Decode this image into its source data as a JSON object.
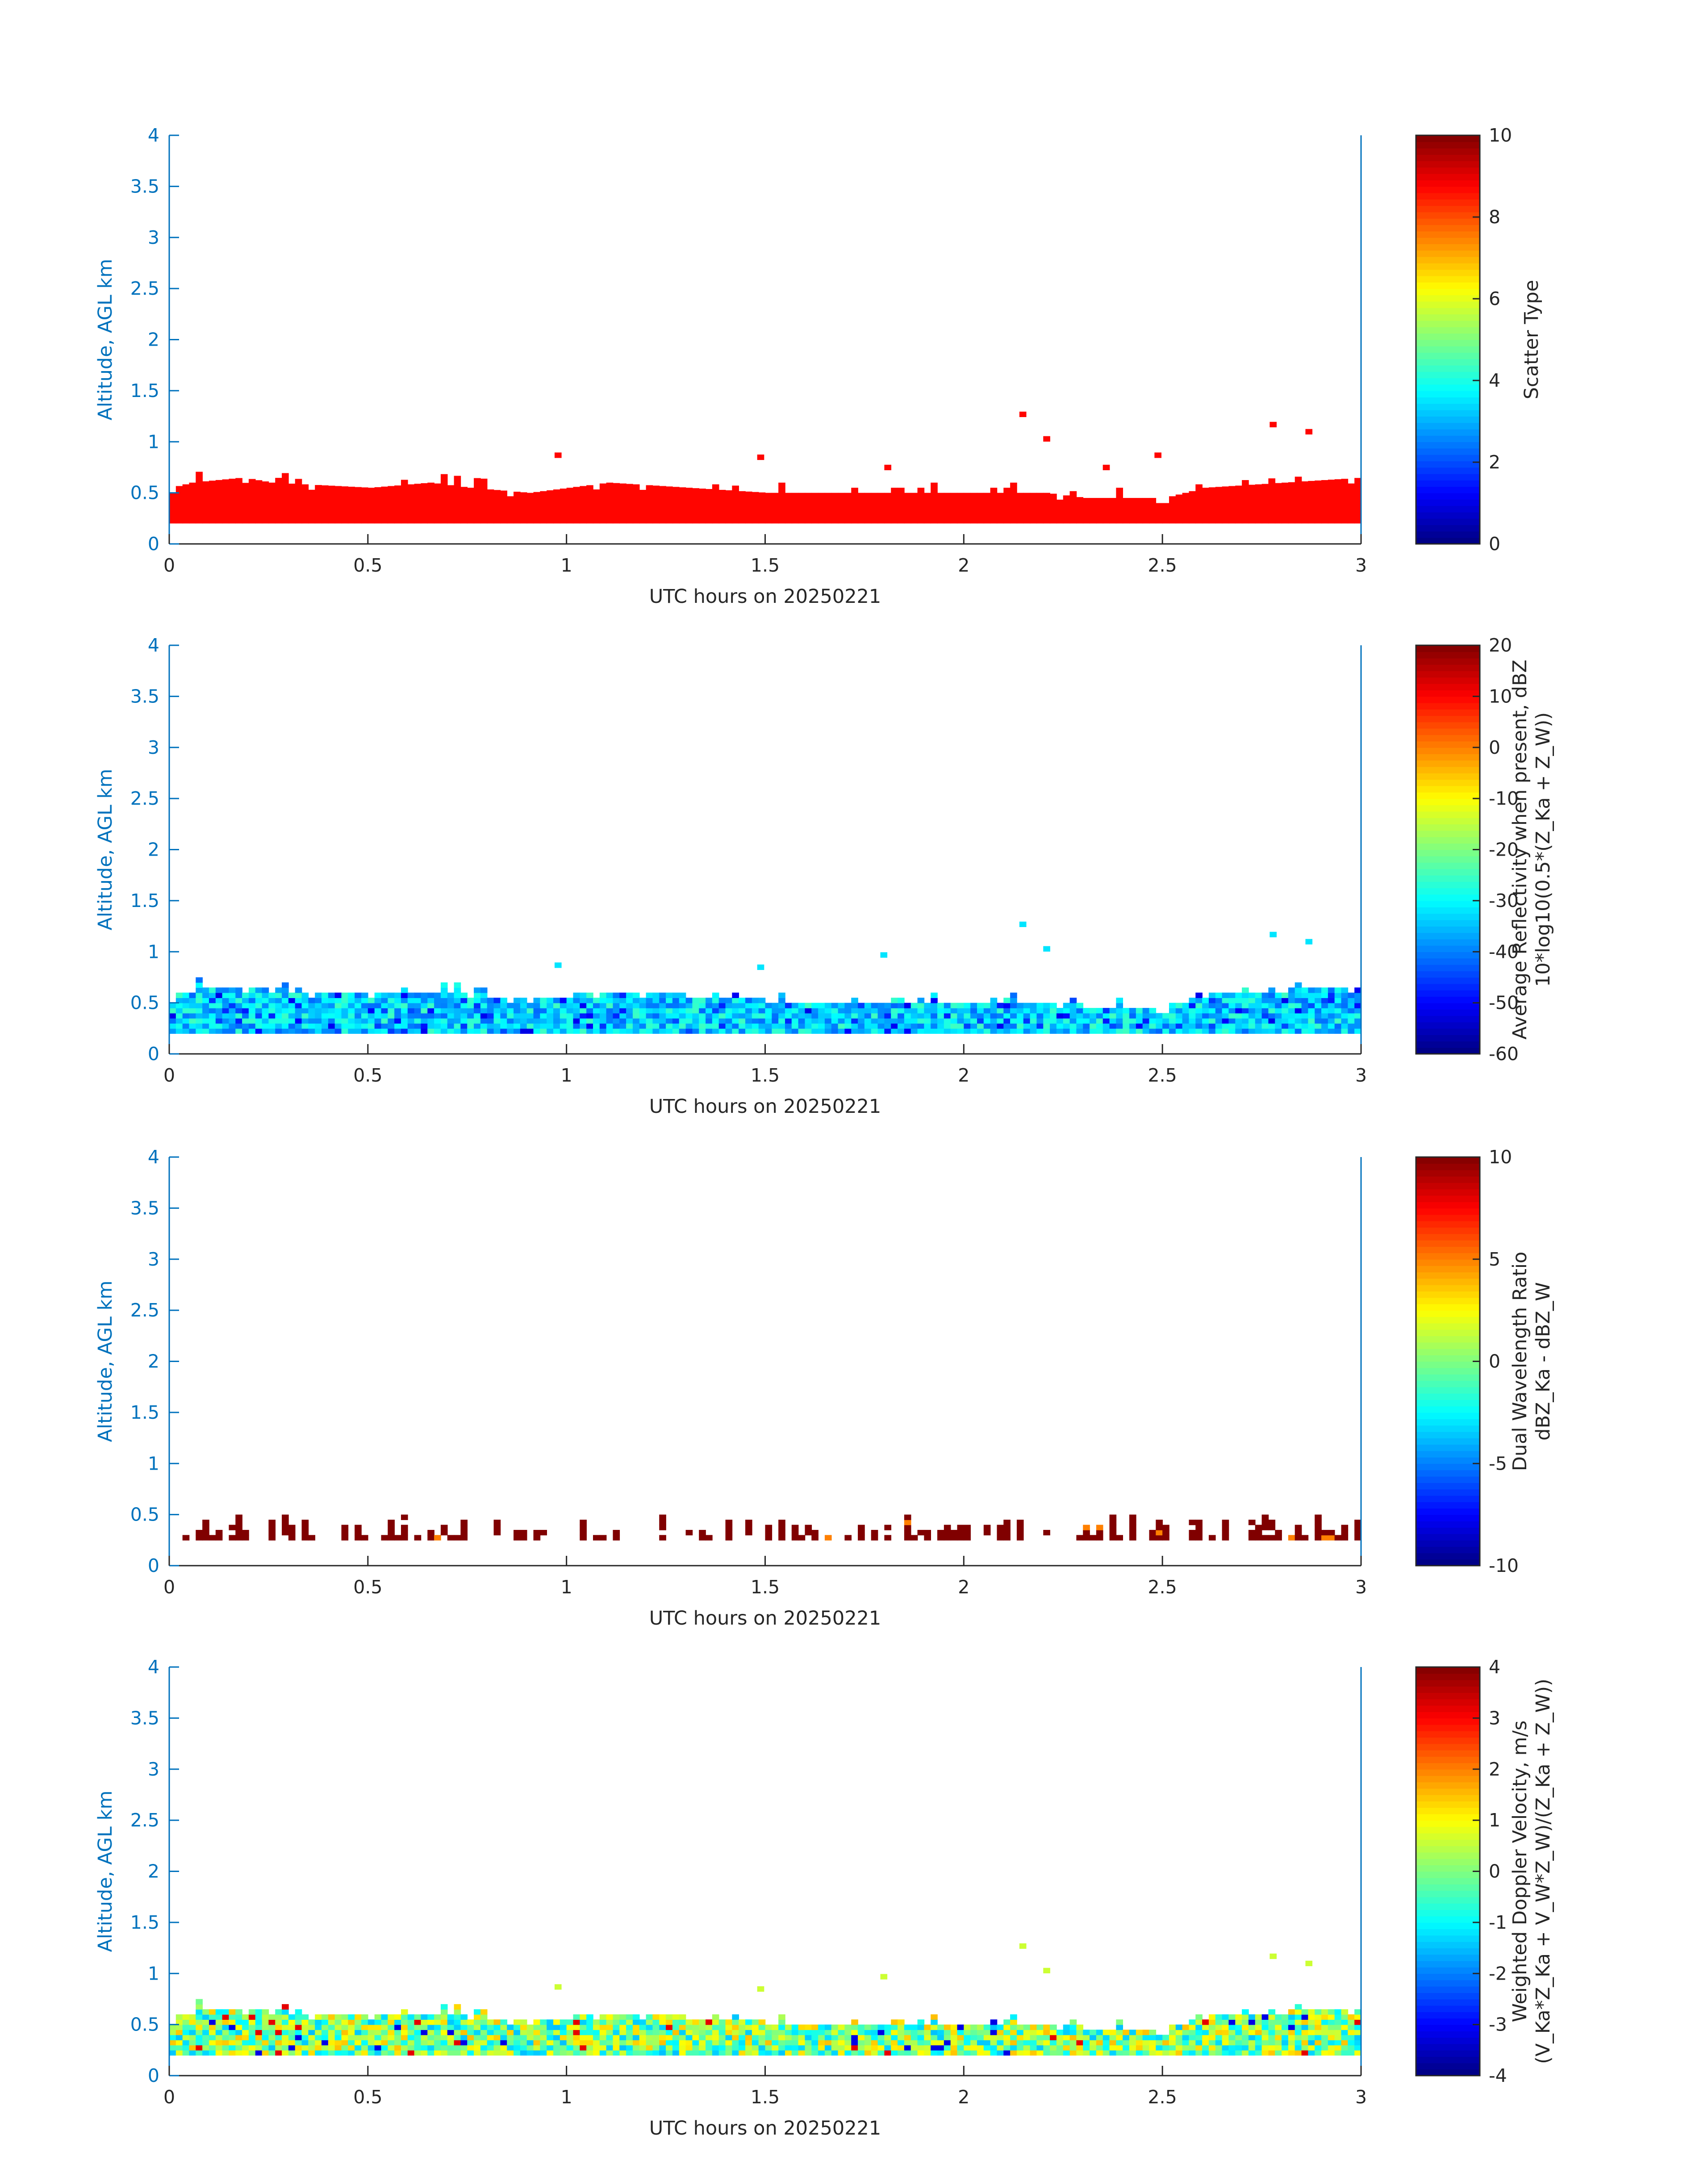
{
  "figure": {
    "date": "20250221",
    "xlabel": "UTC hours on 20250221",
    "ylabel": "Altitude, AGL km",
    "x_ticks": [
      "0",
      "0.5",
      "1",
      "1.5",
      "2",
      "2.5",
      "3"
    ],
    "y_ticks": [
      "0",
      "0.5",
      "1",
      "1.5",
      "2",
      "2.5",
      "3",
      "3.5",
      "4"
    ],
    "axis_color": "#0072bd",
    "text_color": "#262626"
  },
  "chart_data": [
    {
      "type": "heatmap",
      "xlabel": "UTC hours on 20250221",
      "ylabel": "Altitude, AGL km",
      "xlim": [
        0,
        3
      ],
      "ylim": [
        0,
        4
      ],
      "colorbar": {
        "label_lines": [
          "Scatter Type"
        ],
        "clim": [
          0,
          10
        ],
        "ticks": [
          "10",
          "8",
          "6",
          "4",
          "2",
          "0"
        ],
        "colormap": "jet"
      },
      "data": {
        "description": "uniform scatter type ~8.7 from ~0.2 km up to echo top",
        "value": 8.7,
        "base_km": 0.2,
        "echo_top_km_by_time": [
          [
            0,
            0.55
          ],
          [
            0.05,
            0.6
          ],
          [
            0.18,
            0.65
          ],
          [
            0.25,
            0.6
          ],
          [
            0.5,
            0.55
          ],
          [
            0.65,
            0.6
          ],
          [
            0.75,
            0.55
          ],
          [
            0.9,
            0.5
          ],
          [
            1.0,
            0.55
          ],
          [
            1.1,
            0.6
          ],
          [
            1.3,
            0.55
          ],
          [
            1.5,
            0.5
          ],
          [
            1.8,
            0.5
          ],
          [
            2.0,
            0.5
          ],
          [
            2.2,
            0.5
          ],
          [
            2.3,
            0.45
          ],
          [
            2.5,
            0.45
          ],
          [
            2.6,
            0.55
          ],
          [
            2.8,
            0.6
          ],
          [
            3.0,
            0.65
          ]
        ],
        "isolated_cells": [
          [
            0.97,
            0.87
          ],
          [
            1.48,
            0.85
          ],
          [
            1.8,
            0.75
          ],
          [
            2.14,
            1.27
          ],
          [
            2.2,
            1.03
          ],
          [
            2.35,
            0.75
          ],
          [
            2.48,
            0.87
          ],
          [
            2.77,
            1.17
          ],
          [
            2.86,
            1.1
          ]
        ]
      }
    },
    {
      "type": "heatmap",
      "xlabel": "UTC hours on 20250221",
      "ylabel": "Altitude, AGL km",
      "xlim": [
        0,
        3
      ],
      "ylim": [
        0,
        4
      ],
      "colorbar": {
        "label_lines": [
          "Average Reflectivity when present, dBZ",
          "10*log10(0.5*(Z_Ka + Z_W))"
        ],
        "clim": [
          -60,
          20
        ],
        "ticks": [
          "20",
          "10",
          "0",
          "-10",
          "-20",
          "-30",
          "-40",
          "-50",
          "-60"
        ],
        "colormap": "jet"
      },
      "data": {
        "description": "reflectivity mostly -40 to -25 dBZ within 0.2 to ~0.6 km layer",
        "typical_range_dbz": [
          -42,
          -25
        ],
        "base_km": 0.2,
        "isolated_cells": [
          [
            0.97,
            0.87
          ],
          [
            1.48,
            0.85
          ],
          [
            1.79,
            0.97
          ],
          [
            2.14,
            1.27
          ],
          [
            2.2,
            1.03
          ],
          [
            2.77,
            1.17
          ],
          [
            2.86,
            1.1
          ]
        ]
      }
    },
    {
      "type": "heatmap",
      "xlabel": "UTC hours on 20250221",
      "ylabel": "Altitude, AGL km",
      "xlim": [
        0,
        3
      ],
      "ylim": [
        0,
        4
      ],
      "colorbar": {
        "label_lines": [
          "Dual Wavelength Ratio",
          "dBZ_Ka - dBZ_W"
        ],
        "clim": [
          -10,
          10
        ],
        "ticks": [
          "10",
          "5",
          "0",
          "-5",
          "-10"
        ],
        "colormap": "jet"
      },
      "data": {
        "description": "saturated DWR (~10 dB) in patches between ~0.25 and 0.55 km",
        "typical_value_db": 10,
        "base_km": 0.25,
        "top_km": 0.6
      }
    },
    {
      "type": "heatmap",
      "xlabel": "UTC hours on 20250221",
      "ylabel": "Altitude, AGL km",
      "xlim": [
        0,
        3
      ],
      "ylim": [
        0,
        4
      ],
      "colorbar": {
        "label_lines": [
          "Weighted Doppler Velocity, m/s",
          "(V_Ka*Z_Ka + V_W*Z_W)/(Z_Ka + Z_W))"
        ],
        "clim": [
          -4,
          4
        ],
        "ticks": [
          "4",
          "3",
          "2",
          "1",
          "0",
          "-1",
          "-2",
          "-3",
          "-4"
        ],
        "colormap": "jet"
      },
      "data": {
        "description": "velocities mostly -1.5 to +1.5 m/s within 0.2 to ~0.6 km layer",
        "typical_range_ms": [
          -1.5,
          1.5
        ],
        "base_km": 0.2,
        "isolated_cells": [
          [
            0.97,
            0.87
          ],
          [
            1.48,
            0.85
          ],
          [
            1.79,
            0.97
          ],
          [
            2.14,
            1.27
          ],
          [
            2.2,
            1.03
          ],
          [
            2.77,
            1.17
          ],
          [
            2.86,
            1.1
          ]
        ]
      }
    }
  ]
}
